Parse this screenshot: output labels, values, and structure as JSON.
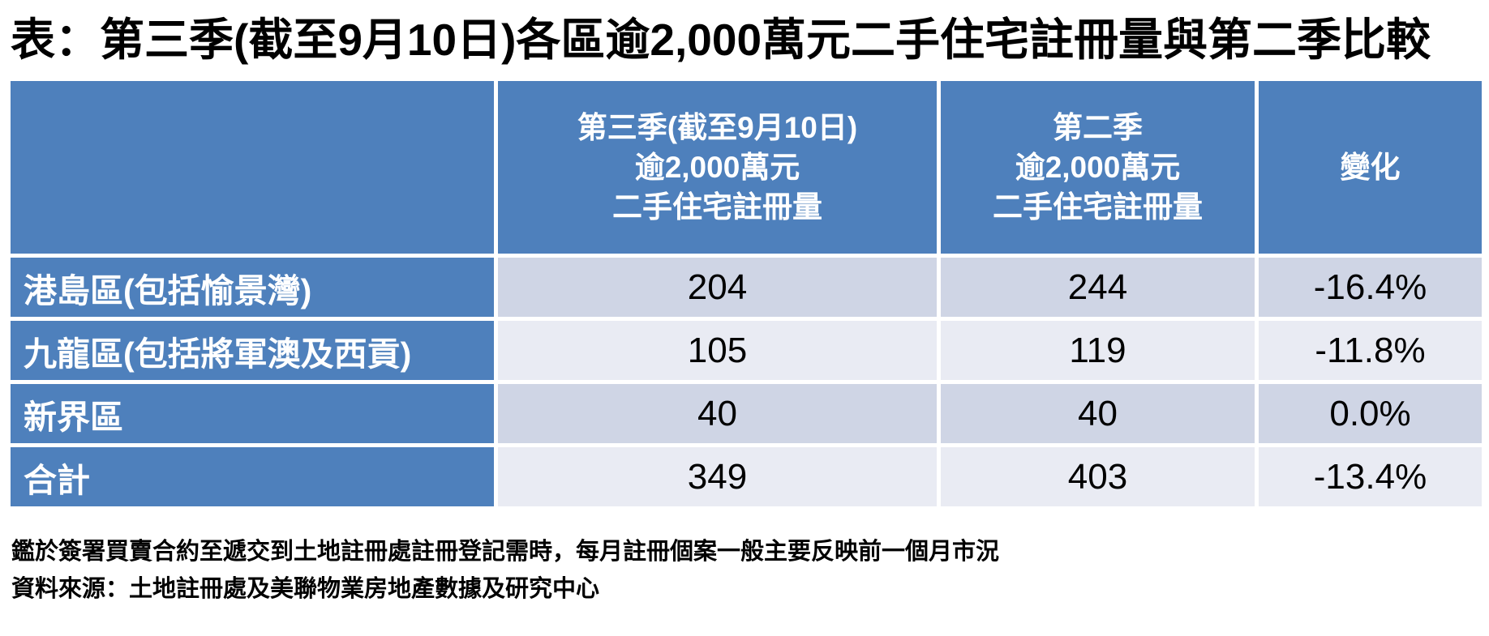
{
  "title": "表：第三季(截至9月10日)各區逾2,000萬元二手住宅註冊量與第二季比較",
  "colors": {
    "header_blue": "#4E80BC",
    "band_dark": "#CFD5E5",
    "band_light": "#E9EBF3",
    "grid_white": "#FFFFFF",
    "text_black": "#000000",
    "text_white": "#FFFFFF"
  },
  "chart_data": {
    "type": "table",
    "title": "表：第三季(截至9月10日)各區逾2,000萬元二手住宅註冊量與第二季比較",
    "column_headers": [
      {
        "lines": [
          "",
          "",
          ""
        ]
      },
      {
        "lines": [
          "第三季(截至9月10日)",
          "逾2,000萬元",
          "二手住宅註冊量"
        ]
      },
      {
        "lines": [
          "第二季",
          "逾2,000萬元",
          "二手住宅註冊量"
        ]
      },
      {
        "lines": [
          "變化",
          "",
          ""
        ]
      }
    ],
    "rows": [
      {
        "district": "港島區(包括愉景灣)",
        "q3_registrations": "204",
        "q2_registrations": "244",
        "change": "-16.4%"
      },
      {
        "district": "九龍區(包括將軍澳及西貢)",
        "q3_registrations": "105",
        "q2_registrations": "119",
        "change": "-11.8%"
      },
      {
        "district": "新界區",
        "q3_registrations": "40",
        "q2_registrations": "40",
        "change": "0.0%"
      },
      {
        "district": "合計",
        "q3_registrations": "349",
        "q2_registrations": "403",
        "change": "-13.4%"
      }
    ],
    "footnotes": [
      "鑑於簽署買賣合約至遞交到土地註冊處註冊登記需時，每月註冊個案一般主要反映前一個月市況",
      "資料來源：土地註冊處及美聯物業房地產數據及研究中心"
    ]
  }
}
